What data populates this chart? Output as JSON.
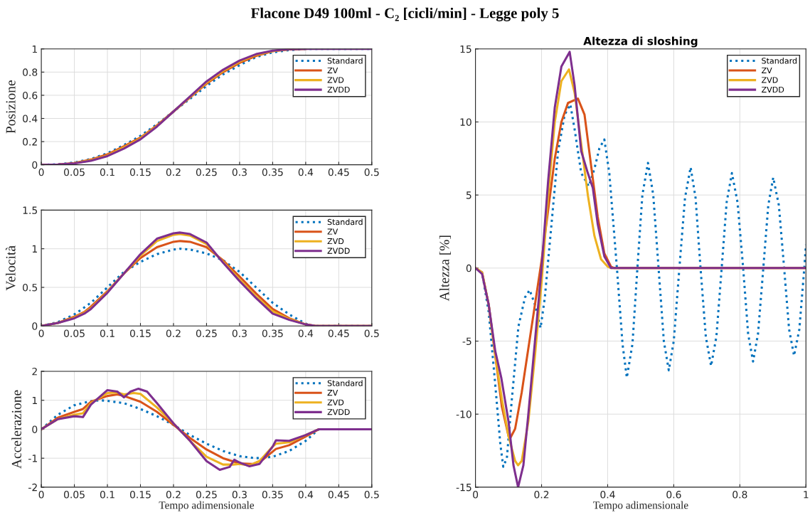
{
  "chart_data": [
    {
      "type": "line",
      "title": "Flacone D49 100ml - C₂ [cicli/min] - Legge poly 5",
      "ylabel": "Posizione",
      "xlim": [
        0,
        0.5
      ],
      "xticks": [
        0,
        0.05,
        0.1,
        0.15,
        0.2,
        0.25,
        0.3,
        0.35,
        0.4,
        0.45,
        0.5
      ],
      "ylim": [
        0,
        1
      ],
      "yticks": [
        0,
        0.2,
        0.4,
        0.6,
        0.8,
        1
      ],
      "grid": true,
      "legend": "top right",
      "series": [
        {
          "name": "Standard",
          "color": "#0072bd",
          "line_style": "dotted",
          "x": [
            0,
            0.025,
            0.05,
            0.075,
            0.1,
            0.125,
            0.15,
            0.175,
            0.2,
            0.225,
            0.25,
            0.275,
            0.3,
            0.325,
            0.35,
            0.375,
            0.4,
            0.45,
            0.5
          ],
          "values": [
            0,
            0.004,
            0.02,
            0.05,
            0.1,
            0.17,
            0.25,
            0.35,
            0.46,
            0.57,
            0.68,
            0.78,
            0.86,
            0.93,
            0.97,
            0.99,
            1,
            1,
            1
          ]
        },
        {
          "name": "ZV",
          "color": "#d95319",
          "line_style": "solid",
          "x": [
            0,
            0.025,
            0.05,
            0.075,
            0.1,
            0.125,
            0.15,
            0.175,
            0.2,
            0.225,
            0.25,
            0.275,
            0.3,
            0.325,
            0.35,
            0.375,
            0.4
          ],
          "values": [
            0,
            0.003,
            0.015,
            0.045,
            0.09,
            0.16,
            0.235,
            0.34,
            0.46,
            0.58,
            0.7,
            0.8,
            0.88,
            0.94,
            0.98,
            0.995,
            1
          ]
        },
        {
          "name": "ZVD",
          "color": "#edb120",
          "line_style": "solid",
          "x": [
            0.05,
            0.075,
            0.1,
            0.125,
            0.15,
            0.175,
            0.2,
            0.225,
            0.25,
            0.275,
            0.3,
            0.325,
            0.35,
            0.375
          ],
          "values": [
            0.013,
            0.04,
            0.08,
            0.15,
            0.228,
            0.335,
            0.46,
            0.585,
            0.71,
            0.81,
            0.89,
            0.95,
            0.982,
            0.996
          ]
        },
        {
          "name": "ZVDD",
          "color": "#7e2f8e",
          "line_style": "solid",
          "x": [
            0,
            0.025,
            0.05,
            0.075,
            0.1,
            0.125,
            0.15,
            0.175,
            0.2,
            0.225,
            0.25,
            0.275,
            0.3,
            0.325,
            0.35,
            0.375,
            0.4,
            0.45,
            0.5
          ],
          "values": [
            0,
            0.002,
            0.012,
            0.035,
            0.075,
            0.14,
            0.22,
            0.33,
            0.46,
            0.59,
            0.72,
            0.82,
            0.9,
            0.955,
            0.985,
            0.997,
            1,
            1,
            1
          ]
        }
      ]
    },
    {
      "type": "line",
      "ylabel": "Velocità",
      "xlim": [
        0,
        0.5
      ],
      "xticks": [
        0,
        0.05,
        0.1,
        0.15,
        0.2,
        0.25,
        0.3,
        0.35,
        0.4,
        0.45,
        0.5
      ],
      "ylim": [
        0,
        1.5
      ],
      "yticks": [
        0,
        0.5,
        1,
        1.5
      ],
      "grid": true,
      "legend": "top right",
      "series": [
        {
          "name": "Standard",
          "color": "#0072bd",
          "line_style": "dotted",
          "x": [
            0,
            0.025,
            0.05,
            0.075,
            0.1,
            0.125,
            0.15,
            0.175,
            0.2,
            0.21,
            0.225,
            0.25,
            0.275,
            0.3,
            0.325,
            0.35,
            0.375,
            0.4,
            0.41,
            0.5
          ],
          "values": [
            0,
            0.05,
            0.15,
            0.3,
            0.5,
            0.7,
            0.83,
            0.93,
            0.99,
            1,
            0.99,
            0.94,
            0.85,
            0.7,
            0.5,
            0.3,
            0.15,
            0.03,
            0,
            0
          ]
        },
        {
          "name": "ZV",
          "color": "#d95319",
          "line_style": "solid",
          "x": [
            0,
            0.025,
            0.05,
            0.065,
            0.075,
            0.1,
            0.125,
            0.15,
            0.175,
            0.2,
            0.21,
            0.225,
            0.25,
            0.275,
            0.3,
            0.325,
            0.35,
            0.375,
            0.4,
            0.415,
            0.5
          ],
          "values": [
            0,
            0.04,
            0.12,
            0.18,
            0.25,
            0.45,
            0.68,
            0.88,
            1.02,
            1.09,
            1.1,
            1.09,
            1.02,
            0.85,
            0.64,
            0.42,
            0.22,
            0.1,
            0.02,
            0,
            0
          ]
        },
        {
          "name": "ZVD",
          "color": "#edb120",
          "line_style": "solid",
          "x": [
            0,
            0.025,
            0.05,
            0.065,
            0.075,
            0.1,
            0.125,
            0.15,
            0.175,
            0.2,
            0.21,
            0.225,
            0.25,
            0.275,
            0.3,
            0.325,
            0.35,
            0.375,
            0.4,
            0.415,
            0.5
          ],
          "values": [
            0,
            0.04,
            0.11,
            0.17,
            0.23,
            0.44,
            0.68,
            0.91,
            1.1,
            1.18,
            1.19,
            1.17,
            1.06,
            0.83,
            0.6,
            0.38,
            0.19,
            0.09,
            0.02,
            0,
            0
          ]
        },
        {
          "name": "ZVDD",
          "color": "#7e2f8e",
          "line_style": "solid",
          "x": [
            0,
            0.025,
            0.05,
            0.065,
            0.075,
            0.1,
            0.125,
            0.15,
            0.175,
            0.2,
            0.21,
            0.225,
            0.25,
            0.275,
            0.3,
            0.325,
            0.35,
            0.375,
            0.4,
            0.415,
            0.5
          ],
          "values": [
            0,
            0.04,
            0.1,
            0.16,
            0.22,
            0.43,
            0.68,
            0.93,
            1.13,
            1.2,
            1.21,
            1.19,
            1.08,
            0.82,
            0.58,
            0.36,
            0.16,
            0.08,
            0.02,
            0,
            0
          ]
        }
      ]
    },
    {
      "type": "line",
      "ylabel": "Accelerazione",
      "xlabel": "Tempo adimensionale",
      "xlim": [
        0,
        0.5
      ],
      "xticks": [
        0,
        0.05,
        0.1,
        0.15,
        0.2,
        0.25,
        0.3,
        0.35,
        0.4,
        0.45,
        0.5
      ],
      "ylim": [
        -2,
        2
      ],
      "yticks": [
        -2,
        -1,
        0,
        1,
        2
      ],
      "grid": true,
      "legend": "top right",
      "series": [
        {
          "name": "Standard",
          "color": "#0072bd",
          "line_style": "dotted",
          "x": [
            0,
            0.025,
            0.05,
            0.075,
            0.09,
            0.1,
            0.125,
            0.15,
            0.175,
            0.2,
            0.225,
            0.25,
            0.275,
            0.3,
            0.325,
            0.35,
            0.375,
            0.4,
            0.42,
            0.5
          ],
          "values": [
            0,
            0.5,
            0.83,
            0.97,
            1,
            0.98,
            0.9,
            0.7,
            0.45,
            0.15,
            -0.2,
            -0.5,
            -0.75,
            -0.93,
            -1,
            -0.95,
            -0.75,
            -0.4,
            0,
            0
          ]
        },
        {
          "name": "ZV",
          "color": "#d95319",
          "line_style": "solid",
          "x": [
            0,
            0.025,
            0.05,
            0.063,
            0.075,
            0.1,
            0.115,
            0.125,
            0.15,
            0.175,
            0.2,
            0.225,
            0.25,
            0.275,
            0.3,
            0.32,
            0.335,
            0.355,
            0.375,
            0.4,
            0.42,
            0.5
          ],
          "values": [
            0,
            0.4,
            0.6,
            0.7,
            0.95,
            1.15,
            1.2,
            1.15,
            0.95,
            0.6,
            0.15,
            -0.3,
            -0.7,
            -1,
            -1.18,
            -1.2,
            -1.05,
            -0.68,
            -0.55,
            -0.25,
            0,
            0
          ]
        },
        {
          "name": "ZVD",
          "color": "#edb120",
          "line_style": "solid",
          "x": [
            0,
            0.025,
            0.05,
            0.063,
            0.075,
            0.1,
            0.115,
            0.125,
            0.14,
            0.15,
            0.175,
            0.2,
            0.225,
            0.25,
            0.275,
            0.29,
            0.3,
            0.315,
            0.33,
            0.35,
            0.355,
            0.375,
            0.4,
            0.42,
            0.5
          ],
          "values": [
            0,
            0.35,
            0.5,
            0.55,
            0.9,
            1.25,
            1.27,
            1.2,
            1.25,
            1.22,
            0.75,
            0.2,
            -0.4,
            -0.95,
            -1.22,
            -1.22,
            -1.2,
            -1.25,
            -1.1,
            -0.6,
            -0.5,
            -0.45,
            -0.2,
            0,
            0
          ]
        },
        {
          "name": "ZVDD",
          "color": "#7e2f8e",
          "line_style": "solid",
          "x": [
            0,
            0.025,
            0.05,
            0.063,
            0.075,
            0.1,
            0.115,
            0.125,
            0.135,
            0.147,
            0.16,
            0.175,
            0.2,
            0.225,
            0.25,
            0.27,
            0.285,
            0.292,
            0.3,
            0.315,
            0.33,
            0.35,
            0.355,
            0.375,
            0.4,
            0.42,
            0.5
          ],
          "values": [
            0,
            0.35,
            0.45,
            0.42,
            0.85,
            1.35,
            1.3,
            1.1,
            1.3,
            1.4,
            1.3,
            0.9,
            0.2,
            -0.4,
            -1.1,
            -1.4,
            -1.3,
            -1.05,
            -1.15,
            -1.28,
            -1.2,
            -0.6,
            -0.38,
            -0.4,
            -0.2,
            0,
            0
          ]
        }
      ]
    },
    {
      "type": "line",
      "title": "Altezza di sloshing",
      "ylabel": "Altezza [%]",
      "xlabel": "Tempo adimensionale",
      "xlim": [
        0,
        1
      ],
      "xticks": [
        0,
        0.2,
        0.4,
        0.6,
        0.8,
        1
      ],
      "ylim": [
        -15,
        15
      ],
      "yticks": [
        -15,
        -10,
        -5,
        0,
        5,
        10,
        15
      ],
      "grid": true,
      "legend": "top right",
      "series": [
        {
          "name": "Standard",
          "color": "#0072bd",
          "line_style": "dotted",
          "x": [
            0,
            0.02,
            0.04,
            0.06,
            0.075,
            0.084,
            0.095,
            0.11,
            0.13,
            0.15,
            0.164,
            0.18,
            0.197,
            0.21,
            0.23,
            0.25,
            0.27,
            0.287,
            0.3,
            0.32,
            0.343,
            0.36,
            0.375,
            0.39,
            0.405,
            0.428,
            0.445,
            0.458,
            0.475,
            0.49,
            0.505,
            0.522,
            0.538,
            0.554,
            0.57,
            0.585,
            0.6,
            0.617,
            0.634,
            0.651,
            0.666,
            0.681,
            0.697,
            0.713,
            0.729,
            0.745,
            0.76,
            0.776,
            0.793,
            0.81,
            0.825,
            0.84,
            0.855,
            0.871,
            0.886,
            0.901,
            0.918,
            0.934,
            0.949,
            0.964,
            0.98,
            0.995,
            1
          ],
          "values": [
            0,
            -0.3,
            -3,
            -8,
            -12,
            -13.6,
            -13,
            -9,
            -4,
            -2,
            -1.5,
            -2.5,
            -4.1,
            -2,
            3,
            8,
            10.5,
            11.2,
            9.5,
            6.5,
            5.6,
            6.8,
            8.2,
            8.8,
            6.5,
            0,
            -5.2,
            -7.5,
            -5.2,
            0,
            5,
            7.2,
            5,
            0,
            -5,
            -7,
            -5,
            0,
            4.8,
            6.9,
            4.8,
            0,
            -4.7,
            -6.7,
            -4.7,
            0,
            4.5,
            6.5,
            4.5,
            0,
            -4.5,
            -6.4,
            -4.5,
            0,
            4.3,
            6.2,
            4.3,
            0,
            -4.2,
            -6,
            -4.2,
            0,
            1.6
          ]
        },
        {
          "name": "ZV",
          "color": "#d95319",
          "line_style": "solid",
          "x": [
            0,
            0.02,
            0.04,
            0.06,
            0.08,
            0.1,
            0.104,
            0.12,
            0.14,
            0.16,
            0.18,
            0.2,
            0.22,
            0.24,
            0.26,
            0.28,
            0.31,
            0.33,
            0.35,
            0.37,
            0.39,
            0.41,
            0.42,
            1
          ],
          "values": [
            0,
            -0.3,
            -2.5,
            -6,
            -9.5,
            -11.5,
            -11.7,
            -11,
            -8.5,
            -5.5,
            -2.5,
            0.5,
            4,
            7.5,
            10,
            11.3,
            11.6,
            10.5,
            7,
            3.5,
            1,
            0.1,
            0,
            0
          ]
        },
        {
          "name": "ZVD",
          "color": "#edb120",
          "line_style": "solid",
          "x": [
            0,
            0.02,
            0.04,
            0.06,
            0.08,
            0.1,
            0.12,
            0.129,
            0.14,
            0.16,
            0.18,
            0.2,
            0.22,
            0.24,
            0.26,
            0.283,
            0.3,
            0.32,
            0.34,
            0.36,
            0.38,
            0.4,
            0.41,
            1
          ],
          "values": [
            0,
            -0.3,
            -2.5,
            -6,
            -9,
            -11.5,
            -13.2,
            -13.5,
            -13.2,
            -10.5,
            -6,
            -1,
            5,
            10,
            12.8,
            13.6,
            12,
            8.5,
            5,
            2.2,
            0.6,
            0.1,
            0,
            0
          ]
        },
        {
          "name": "ZVDD",
          "color": "#7e2f8e",
          "line_style": "solid",
          "x": [
            0,
            0.02,
            0.04,
            0.06,
            0.078,
            0.1,
            0.115,
            0.129,
            0.145,
            0.16,
            0.18,
            0.2,
            0.22,
            0.24,
            0.26,
            0.285,
            0.3,
            0.32,
            0.34,
            0.355,
            0.37,
            0.39,
            0.41,
            1
          ],
          "values": [
            0,
            -0.4,
            -2.5,
            -5.7,
            -7.5,
            -10.5,
            -13.5,
            -15,
            -13.5,
            -10,
            -5,
            0,
            6,
            11,
            13.8,
            14.8,
            12.5,
            8,
            6.5,
            5.5,
            3,
            0.8,
            0,
            0
          ]
        }
      ]
    }
  ]
}
